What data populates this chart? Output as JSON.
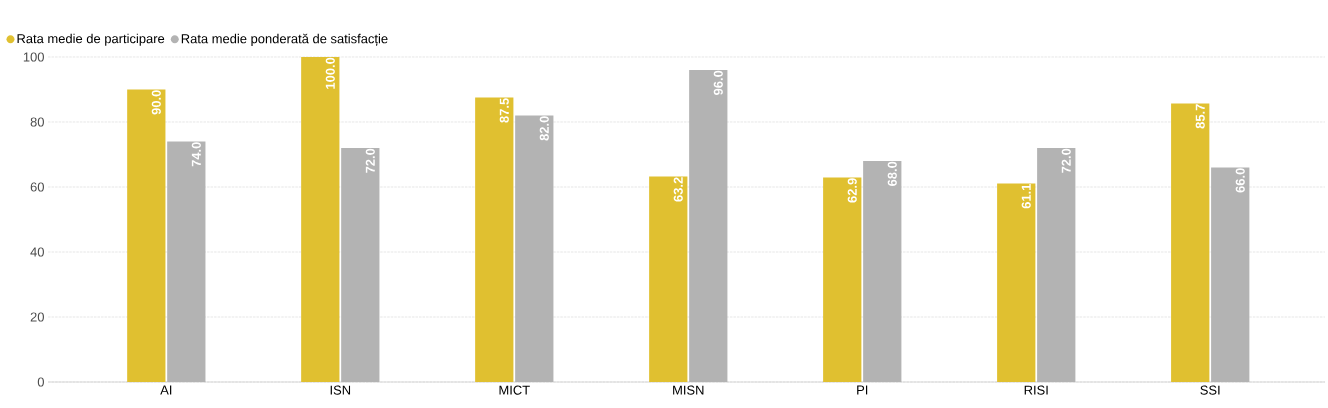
{
  "chart_data": {
    "type": "bar",
    "categories": [
      "AI",
      "ISN",
      "MICT",
      "MISN",
      "PI",
      "RISI",
      "SSI"
    ],
    "series": [
      {
        "name": "Rata medie de participare",
        "color": "#e0c030",
        "values": [
          90.0,
          100.0,
          87.5,
          63.2,
          62.9,
          61.1,
          85.7
        ],
        "value_labels": [
          "90.0",
          "100.0",
          "87.5",
          "63.2",
          "62.9",
          "61.1",
          "85.7"
        ]
      },
      {
        "name": "Rata medie ponderată de satisfacție",
        "color": "#b3b3b3",
        "values": [
          74.0,
          72.0,
          82.0,
          96.0,
          68.0,
          72.0,
          66.0
        ],
        "value_labels": [
          "74.0",
          "72.0",
          "82.0",
          "96.0",
          "68.0",
          "72.0",
          "66.0"
        ]
      }
    ],
    "ylim": [
      0,
      100
    ],
    "yticks": [
      0,
      20,
      40,
      60,
      80,
      100
    ],
    "grid": "y",
    "legend": "top left"
  }
}
